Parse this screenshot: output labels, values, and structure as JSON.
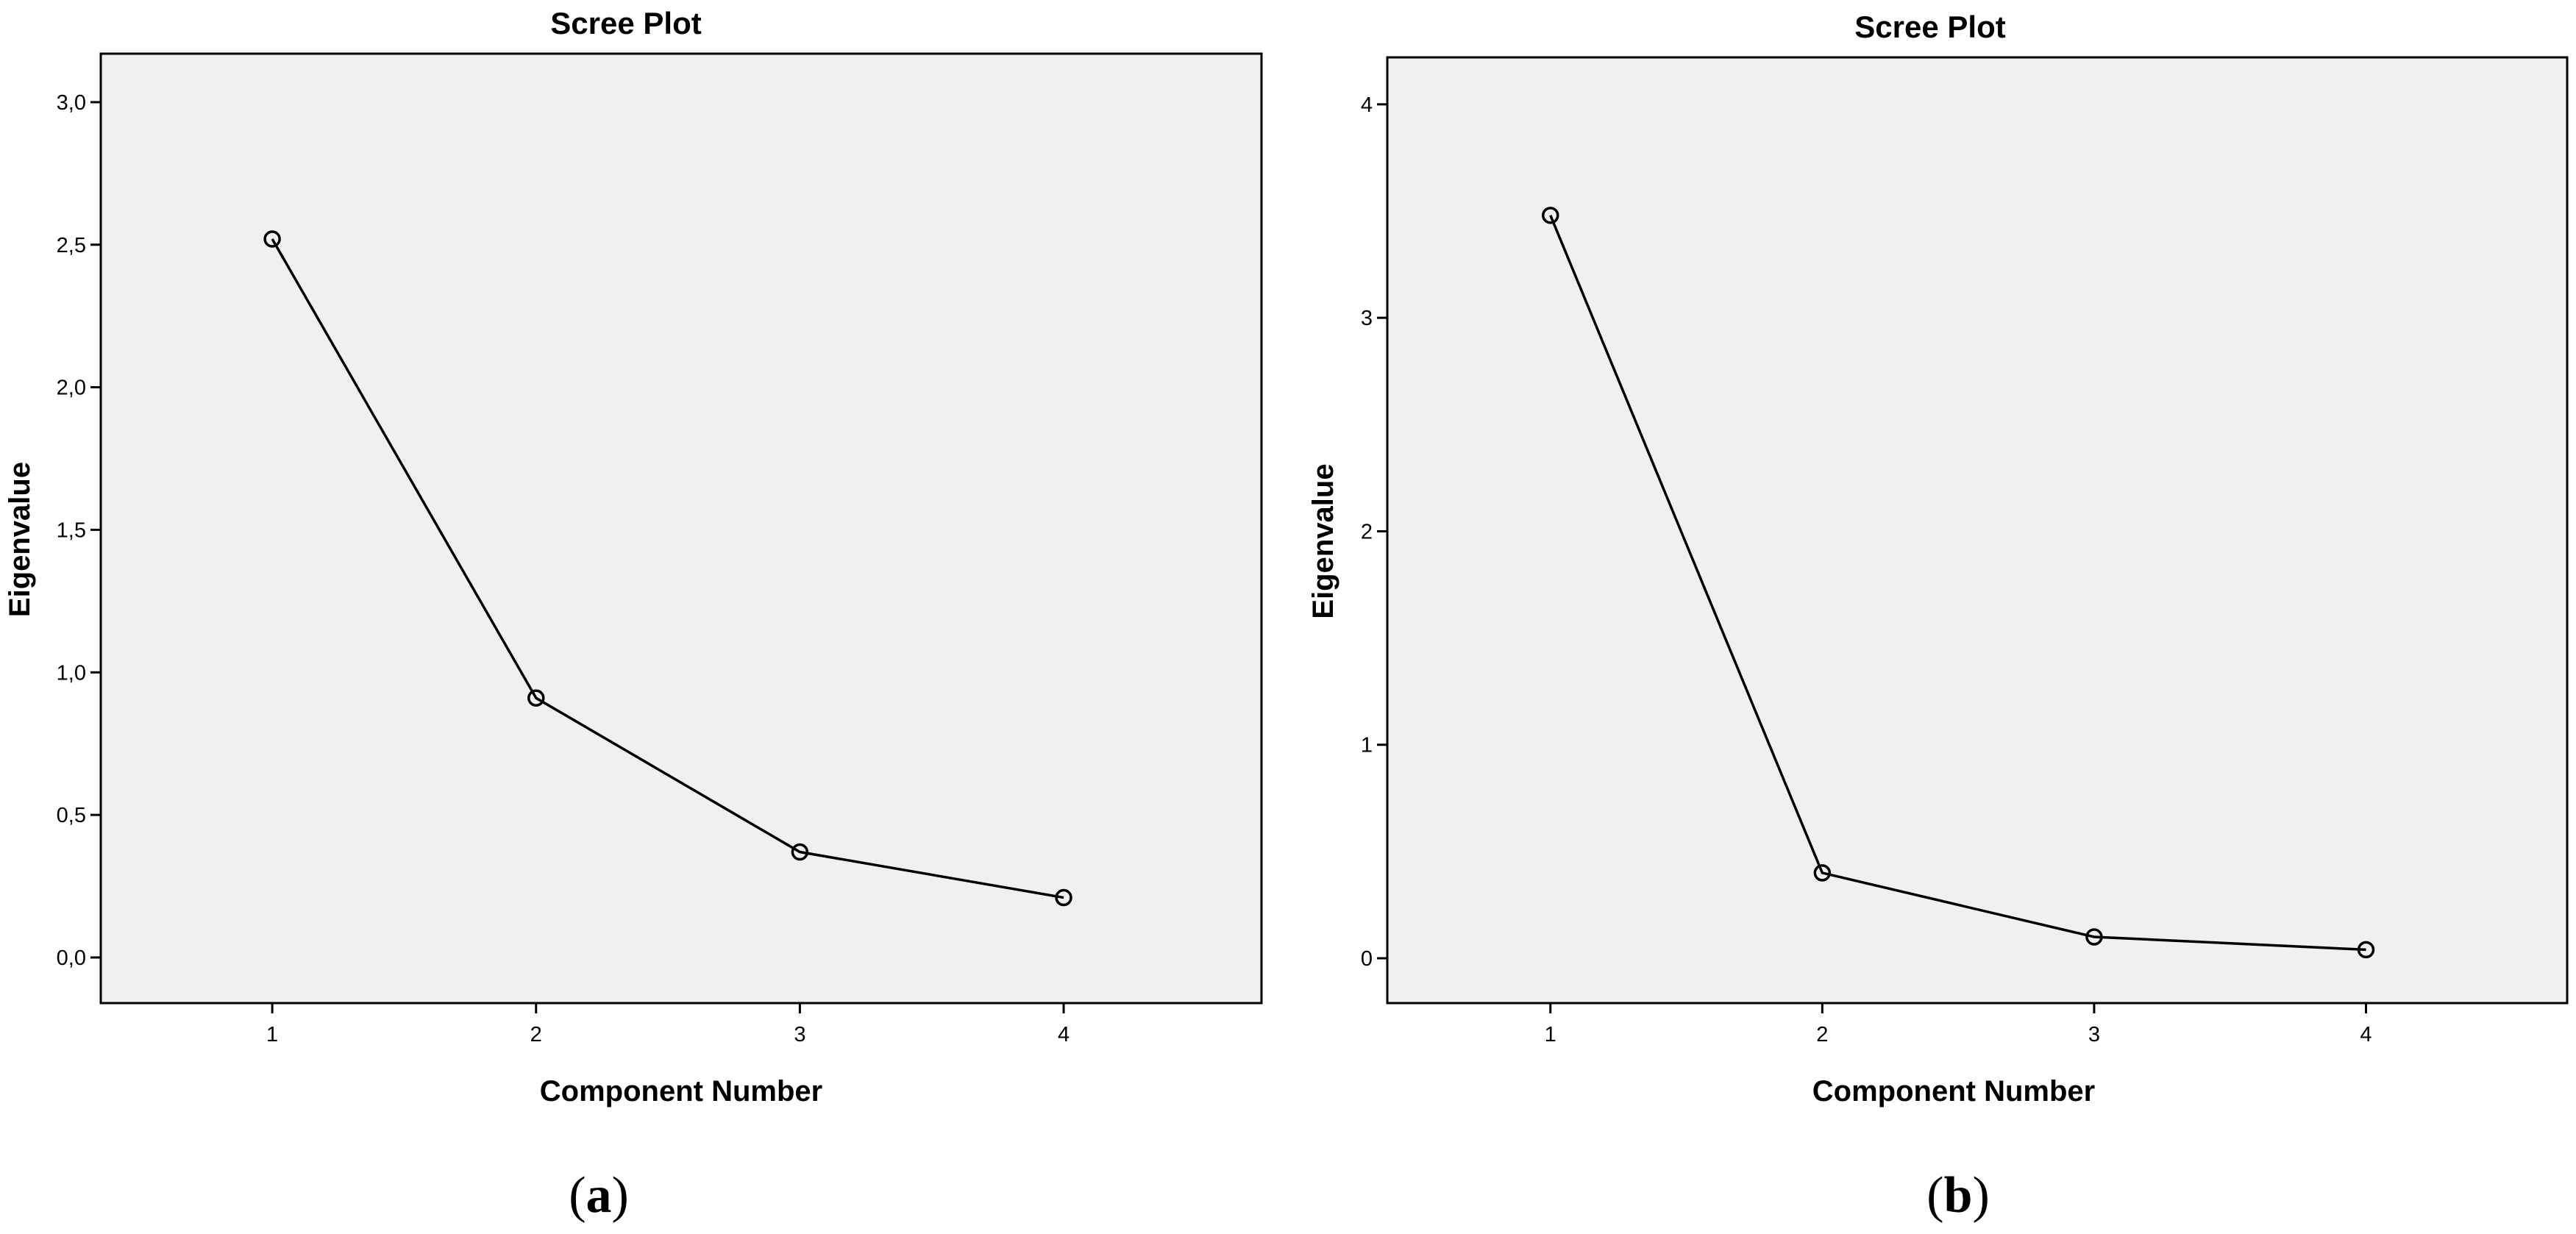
{
  "chart_data": [
    {
      "type": "line",
      "panel": "a",
      "title": "Scree Plot",
      "xlabel": "Component Number",
      "ylabel": "Eigenvalue",
      "caption_open": "(",
      "caption_letter": "a",
      "caption_close": ")",
      "x": [
        1,
        2,
        3,
        4
      ],
      "x_tick_labels": [
        "1",
        "2",
        "3",
        "4"
      ],
      "values": [
        2.52,
        0.91,
        0.37,
        0.21
      ],
      "y_ticks": [
        0,
        0.5,
        1,
        1.5,
        2,
        2.5,
        3
      ],
      "y_tick_labels": [
        "0,0",
        "0,5",
        "1,0",
        "1,5",
        "2,0",
        "2,5",
        "3,0"
      ],
      "ylim": [
        -0.16,
        3.17
      ],
      "xlim": [
        0.35,
        4.75
      ],
      "grid": false,
      "marker": "hollow-circle",
      "colors": {
        "line": "#000000",
        "background": "#f0f0f0"
      }
    },
    {
      "type": "line",
      "panel": "b",
      "title": "Scree Plot",
      "xlabel": "Component Number",
      "ylabel": "Eigenvalue",
      "caption_open": "(",
      "caption_letter": "b",
      "caption_close": ")",
      "x": [
        1,
        2,
        3,
        4
      ],
      "x_tick_labels": [
        "1",
        "2",
        "3",
        "4"
      ],
      "values": [
        3.48,
        0.4,
        0.1,
        0.04
      ],
      "y_ticks": [
        0,
        1,
        2,
        3,
        4
      ],
      "y_tick_labels": [
        "0",
        "1",
        "2",
        "3",
        "4"
      ],
      "ylim": [
        -0.21,
        4.22
      ],
      "xlim": [
        0.4,
        4.74
      ],
      "grid": false,
      "marker": "hollow-circle",
      "colors": {
        "line": "#000000",
        "background": "#f0f0f0"
      }
    }
  ]
}
